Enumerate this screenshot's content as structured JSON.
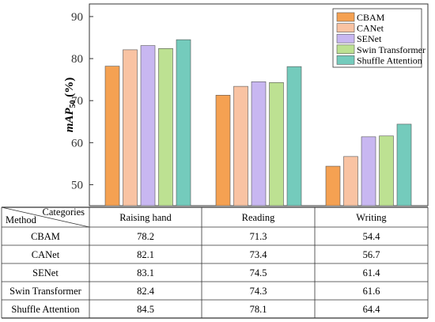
{
  "chart_data": {
    "type": "bar",
    "ylabel_main": "mAP",
    "ylabel_sub": "50",
    "ylabel_unit": " (%)",
    "ylim": [
      45,
      93
    ],
    "yticks": [
      50,
      60,
      70,
      80,
      90
    ],
    "grid": false,
    "legend_position": "top-right",
    "categories": [
      "Raising hand",
      "Reading",
      "Writing"
    ],
    "series": [
      {
        "name": "CBAM",
        "color": "#F5A152",
        "values": [
          78.2,
          71.3,
          54.4
        ]
      },
      {
        "name": "CANet",
        "color": "#F9C3A3",
        "values": [
          82.1,
          73.4,
          56.7
        ]
      },
      {
        "name": "SENet",
        "color": "#C8B7F1",
        "values": [
          83.1,
          74.5,
          61.4
        ]
      },
      {
        "name": "Swin Transformer",
        "color": "#BDE192",
        "values": [
          82.4,
          74.3,
          61.6
        ]
      },
      {
        "name": "Shuffle Attention",
        "color": "#74CBBC",
        "values": [
          84.5,
          78.1,
          64.4
        ]
      }
    ]
  },
  "table": {
    "corner_top": "Categories",
    "corner_bottom": "Method"
  }
}
